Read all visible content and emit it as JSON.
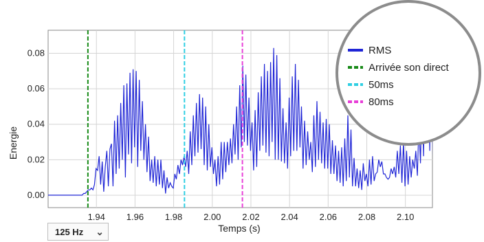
{
  "frequency_selector": {
    "selected": "125 Hz",
    "chevron_icon": "chevron-down-icon"
  },
  "chart_data": {
    "type": "line",
    "xlabel": "Temps (s)",
    "ylabel": "Energie",
    "xlim": [
      1.915,
      2.114
    ],
    "ylim": [
      -0.007,
      0.093
    ],
    "x_ticks": [
      "1.94",
      "1.96",
      "1.98",
      "2.00",
      "2.02",
      "2.04",
      "2.06",
      "2.08",
      "2.10"
    ],
    "y_ticks": [
      "0.00",
      "0.02",
      "0.04",
      "0.06",
      "0.08"
    ],
    "grid": true,
    "legend_placement": "top-right",
    "series": [
      {
        "name": "RMS",
        "color": "#1f25d6",
        "style": "solid",
        "x_start": 1.915,
        "dx": 0.0008,
        "values": [
          0.0,
          0.0,
          0.0,
          0.0,
          0.0,
          0.0,
          0.0,
          0.0,
          0.0,
          0.0,
          0.0,
          0.0,
          0.0,
          0.0,
          0.0,
          0.0,
          0.0,
          0.0,
          0.0,
          0.0,
          0.0,
          0.0,
          0.0,
          0.001,
          0.001,
          0.002,
          0.003,
          0.003,
          0.004,
          0.003,
          0.006,
          0.015,
          0.014,
          0.022,
          0.006,
          0.019,
          0.002,
          0.016,
          0.025,
          0.005,
          0.026,
          0.029,
          0.005,
          0.042,
          0.012,
          0.045,
          0.015,
          0.052,
          0.02,
          0.062,
          0.01,
          0.063,
          0.023,
          0.069,
          0.018,
          0.071,
          0.027,
          0.07,
          0.016,
          0.065,
          0.025,
          0.053,
          0.02,
          0.04,
          0.013,
          0.033,
          0.008,
          0.02,
          0.007,
          0.022,
          0.005,
          0.02,
          0.006,
          0.02,
          0.004,
          0.014,
          0.001,
          0.01,
          0.004,
          0.007,
          0.005,
          0.004,
          0.012,
          0.009,
          0.017,
          0.012,
          0.02,
          0.017,
          0.022,
          0.016,
          0.025,
          0.012,
          0.036,
          0.017,
          0.045,
          0.022,
          0.052,
          0.024,
          0.057,
          0.026,
          0.055,
          0.017,
          0.05,
          0.014,
          0.04,
          0.016,
          0.027,
          0.012,
          0.02,
          0.005,
          0.022,
          0.006,
          0.03,
          0.009,
          0.03,
          0.013,
          0.03,
          0.017,
          0.032,
          0.018,
          0.04,
          0.023,
          0.05,
          0.02,
          0.062,
          0.027,
          0.073,
          0.03,
          0.068,
          0.028,
          0.055,
          0.025,
          0.041,
          0.014,
          0.048,
          0.016,
          0.058,
          0.025,
          0.067,
          0.028,
          0.074,
          0.024,
          0.07,
          0.022,
          0.075,
          0.03,
          0.083,
          0.02,
          0.079,
          0.02,
          0.066,
          0.019,
          0.049,
          0.018,
          0.041,
          0.015,
          0.055,
          0.022,
          0.067,
          0.025,
          0.074,
          0.025,
          0.065,
          0.027,
          0.05,
          0.015,
          0.042,
          0.017,
          0.036,
          0.02,
          0.03,
          0.013,
          0.045,
          0.016,
          0.053,
          0.02,
          0.047,
          0.018,
          0.041,
          0.015,
          0.043,
          0.015,
          0.04,
          0.012,
          0.031,
          0.012,
          0.028,
          0.008,
          0.025,
          0.007,
          0.027,
          0.005,
          0.032,
          0.008,
          0.045,
          0.01,
          0.037,
          0.005,
          0.021,
          0.005,
          0.015,
          0.004,
          0.014,
          0.003,
          0.018,
          0.008,
          0.012,
          0.005,
          0.02,
          0.006,
          0.022,
          0.008,
          0.012,
          0.013,
          0.02,
          0.016,
          0.019,
          0.012,
          0.012,
          0.01,
          0.009,
          0.01,
          0.015,
          0.012,
          0.016,
          0.01,
          0.025,
          0.012,
          0.028,
          0.007,
          0.03,
          0.005,
          0.025,
          0.006,
          0.022,
          0.01,
          0.02,
          0.015,
          0.025,
          0.011,
          0.04,
          0.018,
          0.058,
          0.022,
          0.075,
          0.03,
          0.082,
          0.025,
          0.078,
          0.022,
          0.08,
          0.03,
          0.07,
          0.025,
          0.065,
          0.022,
          0.06,
          0.017,
          0.052,
          0.016,
          0.058,
          0.02,
          0.066,
          0.028,
          0.07,
          0.022,
          0.065,
          0.02,
          0.055,
          0.018,
          0.045,
          0.014,
          0.042,
          0.016,
          0.048,
          0.018,
          0.05,
          0.017,
          0.045,
          0.015,
          0.042,
          0.012,
          0.04,
          0.015,
          0.038,
          0.01,
          0.035,
          0.012,
          0.03,
          0.01,
          0.028,
          0.009,
          0.032,
          0.012,
          0.025,
          0.01,
          0.03,
          0.016,
          0.03,
          0.014,
          0.026,
          0.018,
          0.03,
          0.015,
          0.025
        ]
      },
      {
        "name": "Arrivée son direct",
        "color": "#178a17",
        "style": "dashed",
        "vline_x": 1.9356
      },
      {
        "name": "50ms",
        "color": "#2fcfe3",
        "style": "dashed",
        "vline_x": 1.9856
      },
      {
        "name": "80ms",
        "color": "#e83fd8",
        "style": "dashed",
        "vline_x": 2.0156
      }
    ]
  }
}
